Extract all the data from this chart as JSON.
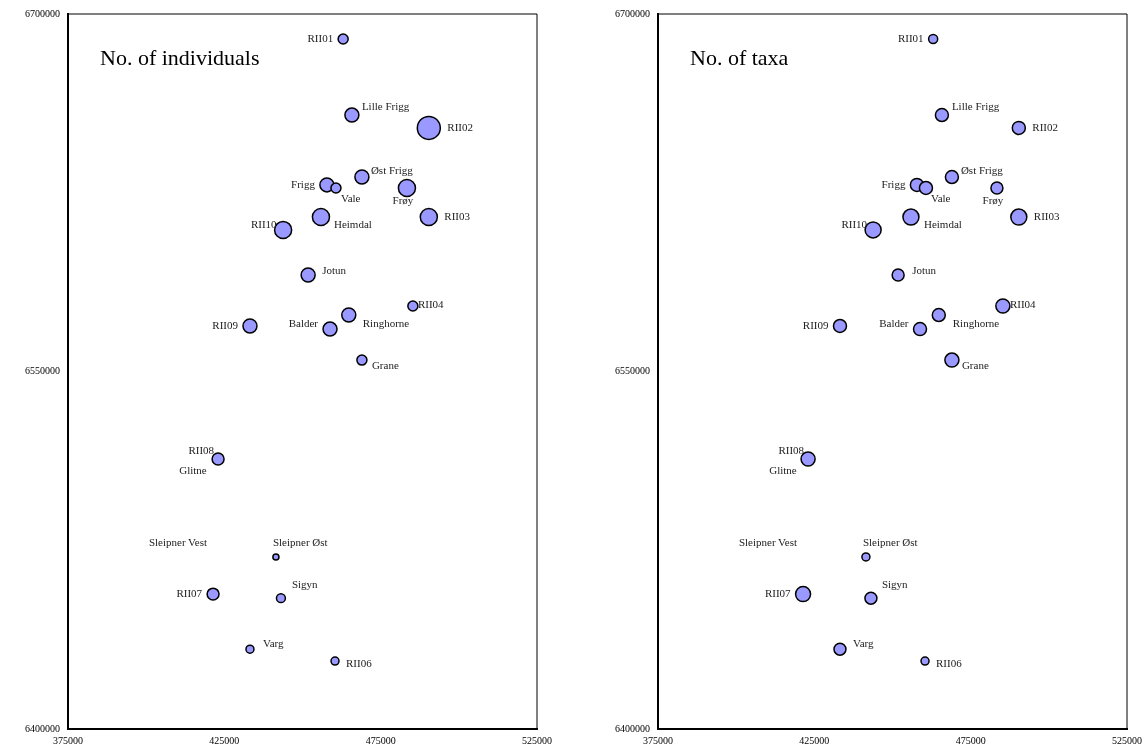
{
  "chart_data": [
    {
      "type": "bubble",
      "title": "No. of individuals",
      "color": "#9999ff",
      "x": [
        463000,
        465800,
        490400,
        469000,
        457800,
        460700,
        483400,
        455900,
        443800,
        490400,
        451800,
        485300,
        464800,
        433200,
        458800,
        469000,
        423000,
        441500,
        421400,
        443100,
        433200,
        460400
      ],
      "values": [
        6689500,
        6657600,
        6652200,
        6631600,
        6628300,
        6627000,
        6627000,
        6614800,
        6609400,
        6614800,
        6590500,
        6577500,
        6573700,
        6569100,
        6567800,
        6554800,
        6513300,
        6472200,
        6456600,
        6454900,
        6433500,
        6428500
      ],
      "sizes": [
        0.19,
        0.37,
        1,
        0.37,
        0.37,
        0.19,
        0.55,
        0.55,
        0.55,
        0.55,
        0.37,
        0.19,
        0.37,
        0.37,
        0.37,
        0.19,
        0.27,
        0.07,
        0.27,
        0.15,
        0.12,
        0.12
      ],
      "value_labels": [
        "RII01",
        "Lille Frigg",
        "RII02",
        "Øst Frigg",
        "Frigg",
        "Vale",
        "Frøy",
        "Heimdal",
        "RII10",
        "RII03",
        "Jotun",
        "RII04",
        "Ringhorne",
        "RII09",
        "Balder",
        "Grane",
        "RII08",
        "Sleipner Øst",
        "RII07",
        "Sigyn",
        "Varg",
        "RII06"
      ],
      "annotations": [
        "Glitne",
        "Sleipner Vest"
      ],
      "xlim": [
        375000,
        525000
      ],
      "ylim": [
        6400000,
        6700000
      ],
      "xticks": [
        375000,
        425000,
        475000,
        525000
      ],
      "yticks": [
        6400000,
        6550000,
        6700000
      ]
    },
    {
      "type": "bubble",
      "title": "No. of taxa",
      "color": "#9999ff",
      "x": [
        463000,
        465800,
        490400,
        469000,
        457800,
        460700,
        483400,
        455900,
        443800,
        490400,
        451800,
        485300,
        464800,
        433200,
        458800,
        469000,
        423000,
        441500,
        421400,
        443100,
        433200,
        460400
      ],
      "values": [
        6689500,
        6657600,
        6652200,
        6631600,
        6628300,
        6627000,
        6627000,
        6614800,
        6609400,
        6614800,
        6590500,
        6577500,
        6573700,
        6569100,
        6567800,
        6554800,
        6513300,
        6472200,
        6456600,
        6454900,
        6433500,
        6428500
      ],
      "sizes": [
        0.32,
        0.66,
        0.66,
        0.66,
        0.66,
        0.66,
        0.56,
        1,
        1,
        1,
        0.56,
        0.77,
        0.66,
        0.66,
        0.66,
        0.77,
        0.77,
        0.25,
        0.88,
        0.56,
        0.56,
        0.25
      ],
      "value_labels": [
        "RII01",
        "Lille Frigg",
        "RII02",
        "Øst Frigg",
        "Frigg",
        "Vale",
        "Frøy",
        "Heimdal",
        "RII10",
        "RII03",
        "Jotun",
        "RII04",
        "Ringhorne",
        "RII09",
        "Balder",
        "Grane",
        "RII08",
        "Sleipner Øst",
        "RII07",
        "Sigyn",
        "Varg",
        "RII06"
      ],
      "annotations": [
        "Glitne",
        "Sleipner Vest"
      ],
      "xlim": [
        375000,
        525000
      ],
      "ylim": [
        6400000,
        6700000
      ],
      "xticks": [
        375000,
        425000,
        475000,
        525000
      ],
      "yticks": [
        6400000,
        6550000,
        6700000
      ]
    }
  ]
}
